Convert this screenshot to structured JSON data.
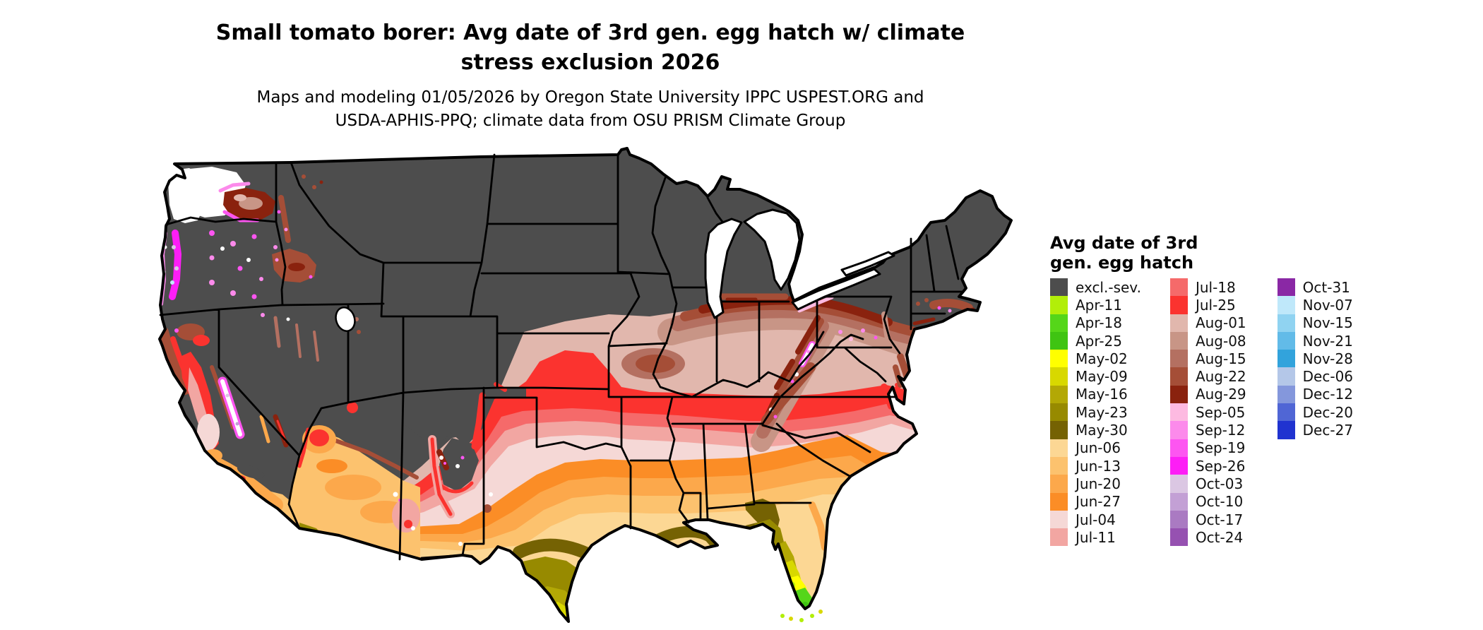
{
  "title": {
    "line1": "Small tomato borer: Avg date of 3rd gen. egg hatch w/ climate",
    "line2": "stress exclusion 2026"
  },
  "subtitle": {
    "line1": "Maps and modeling 01/05/2026 by Oregon State University IPPC USPEST.ORG and",
    "line2": "USDA-APHIS-PPQ; climate data from OSU PRISM Climate Group"
  },
  "legend": {
    "title_line1": "Avg date of 3rd",
    "title_line2": "gen. egg hatch",
    "columns": [
      [
        {
          "label": "excl.-sev.",
          "color": "#4d4d4d"
        },
        {
          "label": "Apr-11",
          "color": "#b2ee09"
        },
        {
          "label": "Apr-18",
          "color": "#55d619"
        },
        {
          "label": "Apr-25",
          "color": "#3fc412"
        },
        {
          "label": "May-02",
          "color": "#ffff00"
        },
        {
          "label": "May-09",
          "color": "#d8d800"
        },
        {
          "label": "May-16",
          "color": "#b3a805"
        },
        {
          "label": "May-23",
          "color": "#978a00"
        },
        {
          "label": "May-30",
          "color": "#756203"
        },
        {
          "label": "Jun-06",
          "color": "#fcd794"
        },
        {
          "label": "Jun-13",
          "color": "#fcc26e"
        },
        {
          "label": "Jun-20",
          "color": "#fca84b"
        },
        {
          "label": "Jun-27",
          "color": "#fb8d26"
        },
        {
          "label": "Jul-04",
          "color": "#f5d8d6"
        },
        {
          "label": "Jul-11",
          "color": "#f2a6a2"
        }
      ],
      [
        {
          "label": "Jul-18",
          "color": "#f56a6a"
        },
        {
          "label": "Jul-25",
          "color": "#fb332f"
        },
        {
          "label": "Aug-01",
          "color": "#e1b7ad"
        },
        {
          "label": "Aug-08",
          "color": "#c89586"
        },
        {
          "label": "Aug-15",
          "color": "#b47061"
        },
        {
          "label": "Aug-22",
          "color": "#a54e37"
        },
        {
          "label": "Aug-29",
          "color": "#8a220e"
        },
        {
          "label": "Sep-05",
          "color": "#fdbae1"
        },
        {
          "label": "Sep-12",
          "color": "#fc8aeb"
        },
        {
          "label": "Sep-19",
          "color": "#fd55f1"
        },
        {
          "label": "Sep-26",
          "color": "#fd1ef6"
        },
        {
          "label": "Oct-03",
          "color": "#dbc7e3"
        },
        {
          "label": "Oct-10",
          "color": "#c3a0d5"
        },
        {
          "label": "Oct-17",
          "color": "#aa7ac2"
        },
        {
          "label": "Oct-24",
          "color": "#9651b1"
        }
      ],
      [
        {
          "label": "Oct-31",
          "color": "#8a28a5"
        },
        {
          "label": "Nov-07",
          "color": "#bfe8fa"
        },
        {
          "label": "Nov-15",
          "color": "#90d3f1"
        },
        {
          "label": "Nov-21",
          "color": "#62bbe8"
        },
        {
          "label": "Nov-28",
          "color": "#32a3dc"
        },
        {
          "label": "Dec-06",
          "color": "#b4c7e8"
        },
        {
          "label": "Dec-12",
          "color": "#8497dc"
        },
        {
          "label": "Dec-20",
          "color": "#5066d5"
        },
        {
          "label": "Dec-27",
          "color": "#2033d0"
        }
      ]
    ]
  },
  "map": {
    "region": "Contiguous United States",
    "kind": "raster choropleth of average date of 3rd generation egg hatch",
    "excluded_label": "excl.-sev.",
    "excluded_color": "#4d4d4d",
    "background_color": "#ffffff",
    "state_border_color": "#000000"
  }
}
